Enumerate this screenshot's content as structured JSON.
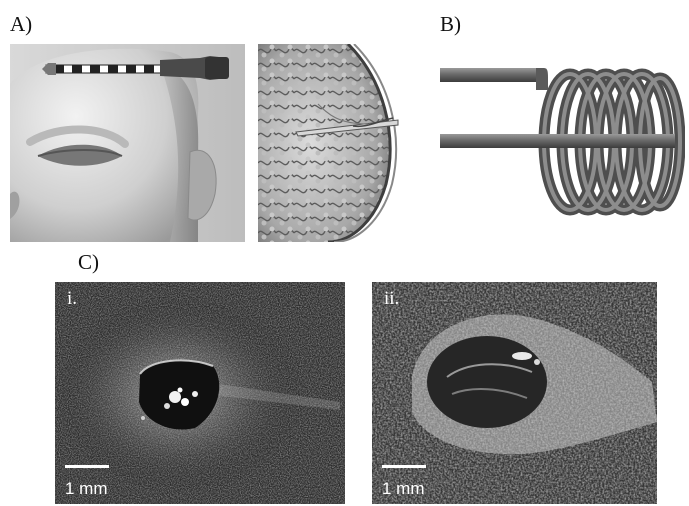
{
  "panels": {
    "a": {
      "label": "A)"
    },
    "b": {
      "label": "B)"
    },
    "c": {
      "label": "C)",
      "images": [
        {
          "label": "i.",
          "scale_text": "1 mm"
        },
        {
          "label": "ii.",
          "scale_text": "1 mm"
        }
      ]
    }
  }
}
